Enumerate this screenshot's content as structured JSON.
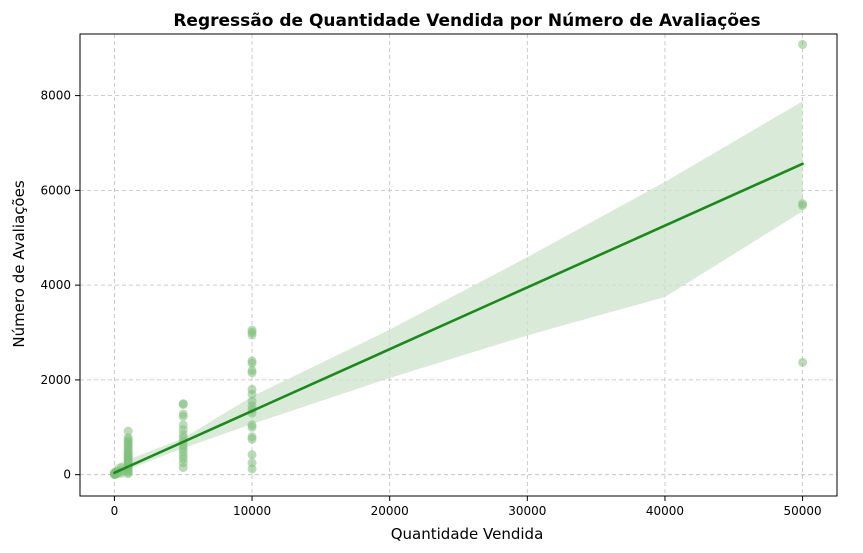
{
  "chart_data": {
    "type": "scatter",
    "title": "Regressão de Quantidade Vendida por Número de Avaliações",
    "xlabel": "Quantidade Vendida",
    "ylabel": "Número de Avaliações",
    "xlim": [
      -2500,
      52500
    ],
    "ylim": [
      -450,
      9300
    ],
    "xticks": [
      0,
      10000,
      20000,
      30000,
      40000,
      50000
    ],
    "xtick_labels": [
      "0",
      "10000",
      "20000",
      "30000",
      "40000",
      "50000"
    ],
    "yticks": [
      0,
      2000,
      4000,
      6000,
      8000
    ],
    "ytick_labels": [
      "0",
      "2000",
      "4000",
      "6000",
      "8000"
    ],
    "grid": true,
    "grid_style": "dashed",
    "colors": {
      "points": "#7fbf7b",
      "line": "#1a8a1a",
      "band": "#cce3cc"
    },
    "series": [
      {
        "points": [
          [
            0,
            0
          ],
          [
            0,
            10
          ],
          [
            0,
            25
          ],
          [
            0,
            40
          ],
          [
            50,
            5
          ],
          [
            50,
            30
          ],
          [
            100,
            15
          ],
          [
            100,
            60
          ],
          [
            200,
            20
          ],
          [
            200,
            80
          ],
          [
            300,
            50
          ],
          [
            500,
            30
          ],
          [
            500,
            90
          ],
          [
            500,
            150
          ],
          [
            1000,
            20
          ],
          [
            1000,
            50
          ],
          [
            1000,
            80
          ],
          [
            1000,
            110
          ],
          [
            1000,
            140
          ],
          [
            1000,
            170
          ],
          [
            1000,
            200
          ],
          [
            1000,
            230
          ],
          [
            1000,
            260
          ],
          [
            1000,
            290
          ],
          [
            1000,
            320
          ],
          [
            1000,
            350
          ],
          [
            1000,
            380
          ],
          [
            1000,
            410
          ],
          [
            1000,
            440
          ],
          [
            1000,
            470
          ],
          [
            1000,
            500
          ],
          [
            1000,
            540
          ],
          [
            1000,
            580
          ],
          [
            1000,
            620
          ],
          [
            1000,
            660
          ],
          [
            1000,
            700
          ],
          [
            1000,
            740
          ],
          [
            1000,
            780
          ],
          [
            1000,
            920
          ],
          [
            5000,
            150
          ],
          [
            5000,
            250
          ],
          [
            5000,
            330
          ],
          [
            5000,
            400
          ],
          [
            5000,
            480
          ],
          [
            5000,
            550
          ],
          [
            5000,
            620
          ],
          [
            5000,
            700
          ],
          [
            5000,
            780
          ],
          [
            5000,
            850
          ],
          [
            5000,
            950
          ],
          [
            5000,
            1050
          ],
          [
            5000,
            1230
          ],
          [
            5000,
            1280
          ],
          [
            5000,
            1480
          ],
          [
            5000,
            1500
          ],
          [
            10000,
            120
          ],
          [
            10000,
            250
          ],
          [
            10000,
            420
          ],
          [
            10000,
            750
          ],
          [
            10000,
            800
          ],
          [
            10000,
            1000
          ],
          [
            10000,
            1050
          ],
          [
            10000,
            1300
          ],
          [
            10000,
            1380
          ],
          [
            10000,
            1450
          ],
          [
            10000,
            1550
          ],
          [
            10000,
            1700
          ],
          [
            10000,
            1800
          ],
          [
            10000,
            2150
          ],
          [
            10000,
            2200
          ],
          [
            10000,
            2350
          ],
          [
            10000,
            2400
          ],
          [
            10000,
            2950
          ],
          [
            10000,
            3000
          ],
          [
            10000,
            3050
          ],
          [
            50000,
            2370
          ],
          [
            50000,
            5680
          ],
          [
            50000,
            5720
          ],
          [
            50000,
            9080
          ]
        ]
      }
    ],
    "regression": {
      "x_range": [
        0,
        50000
      ],
      "line": [
        [
          0,
          40
        ],
        [
          50000,
          6560
        ]
      ],
      "ci_lower": [
        [
          0,
          0
        ],
        [
          5000,
          560
        ],
        [
          10000,
          1070
        ],
        [
          20000,
          2040
        ],
        [
          30000,
          2940
        ],
        [
          40000,
          3750
        ],
        [
          50000,
          5560
        ]
      ],
      "ci_upper": [
        [
          0,
          200
        ],
        [
          5000,
          770
        ],
        [
          10000,
          1650
        ],
        [
          20000,
          3060
        ],
        [
          30000,
          4590
        ],
        [
          40000,
          6180
        ],
        [
          50000,
          7880
        ]
      ]
    }
  }
}
